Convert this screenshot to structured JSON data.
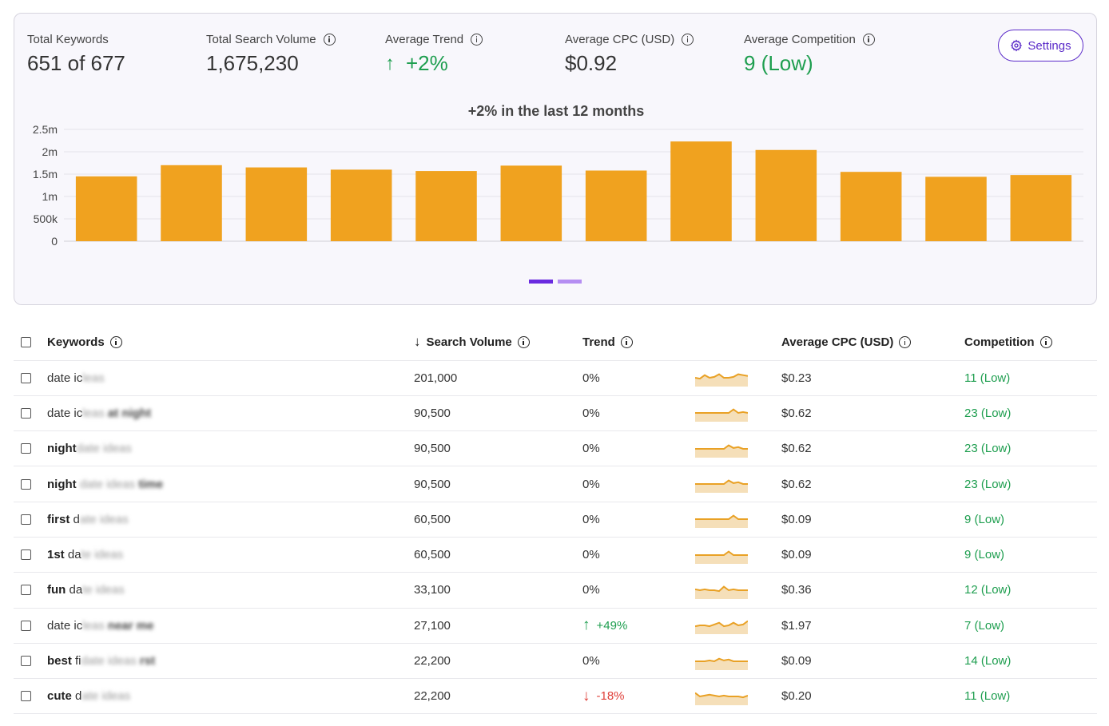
{
  "metrics": [
    {
      "label": "Total Keywords",
      "value": "651 of 677",
      "info": false,
      "green": false
    },
    {
      "label": "Total Search Volume",
      "value": "1,675,230",
      "info": true,
      "green": false
    },
    {
      "label": "Average Trend",
      "value": "+2%",
      "info": true,
      "green": true,
      "arrow": "↑"
    },
    {
      "label": "Average CPC (USD)",
      "value": "$0.92",
      "info": true,
      "green": false
    },
    {
      "label": "Average Competition",
      "value": "9 (Low)",
      "info": true,
      "green": true
    }
  ],
  "settings_label": "Settings",
  "accent_color": "#5b2bc9",
  "chart_data": {
    "type": "bar",
    "title": "+2% in the last 12 months",
    "y_ticks": [
      "2.5m",
      "2m",
      "1.5m",
      "1m",
      "500k",
      "0"
    ],
    "ylim": [
      0,
      2500000
    ],
    "values": [
      1450000,
      1700000,
      1650000,
      1600000,
      1570000,
      1690000,
      1580000,
      2230000,
      2040000,
      1550000,
      1440000,
      1480000
    ],
    "bar_color": "#f0a21f",
    "grid": true
  },
  "table": {
    "headers": {
      "keywords": "Keywords",
      "search_volume": "Search Volume",
      "sort_arrow": "↓",
      "trend": "Trend",
      "cpc": "Average CPC (USD)",
      "competition": "Competition"
    },
    "rows": [
      {
        "kw_bold": "",
        "kw_plain": "date ic",
        "kw_blur": "leas",
        "kw_blur_bold": "",
        "volume": "201,000",
        "trend": "0%",
        "trend_dir": "flat",
        "spark": [
          0.5,
          0.55,
          0.35,
          0.5,
          0.45,
          0.3,
          0.5,
          0.5,
          0.45,
          0.3,
          0.35,
          0.4
        ],
        "cpc": "$0.23",
        "competition": "11 (Low)"
      },
      {
        "kw_bold": "",
        "kw_plain": "date ic",
        "kw_blur": "leas",
        "kw_blur_bold": "at night",
        "volume": "90,500",
        "trend": "0%",
        "trend_dir": "flat",
        "spark": [
          0.5,
          0.5,
          0.5,
          0.5,
          0.5,
          0.5,
          0.5,
          0.5,
          0.3,
          0.5,
          0.45,
          0.5
        ],
        "cpc": "$0.62",
        "competition": "23 (Low)"
      },
      {
        "kw_bold": "night",
        "kw_plain": "",
        "kw_blur": "date ideas",
        "kw_blur_bold": "",
        "volume": "90,500",
        "trend": "0%",
        "trend_dir": "flat",
        "spark": [
          0.5,
          0.5,
          0.5,
          0.5,
          0.5,
          0.5,
          0.5,
          0.3,
          0.45,
          0.4,
          0.5,
          0.5
        ],
        "cpc": "$0.62",
        "competition": "23 (Low)"
      },
      {
        "kw_bold": "night",
        "kw_plain": " ",
        "kw_blur": "date ideas",
        "kw_blur_bold": "time",
        "volume": "90,500",
        "trend": "0%",
        "trend_dir": "flat",
        "spark": [
          0.5,
          0.5,
          0.5,
          0.5,
          0.5,
          0.5,
          0.5,
          0.3,
          0.45,
          0.4,
          0.5,
          0.5
        ],
        "cpc": "$0.62",
        "competition": "23 (Low)"
      },
      {
        "kw_bold": "first",
        "kw_plain": " d",
        "kw_blur": "ate ideas",
        "kw_blur_bold": "",
        "volume": "60,500",
        "trend": "0%",
        "trend_dir": "flat",
        "spark": [
          0.5,
          0.5,
          0.5,
          0.5,
          0.5,
          0.5,
          0.5,
          0.5,
          0.3,
          0.5,
          0.5,
          0.5
        ],
        "cpc": "$0.09",
        "competition": "9 (Low)"
      },
      {
        "kw_bold": "1st",
        "kw_plain": " da",
        "kw_blur": "te ideas",
        "kw_blur_bold": "",
        "volume": "60,500",
        "trend": "0%",
        "trend_dir": "flat",
        "spark": [
          0.5,
          0.5,
          0.5,
          0.5,
          0.5,
          0.5,
          0.5,
          0.3,
          0.5,
          0.5,
          0.5,
          0.5
        ],
        "cpc": "$0.09",
        "competition": "9 (Low)"
      },
      {
        "kw_bold": "fun",
        "kw_plain": " da",
        "kw_blur": "te ideas",
        "kw_blur_bold": "",
        "volume": "33,100",
        "trend": "0%",
        "trend_dir": "flat",
        "spark": [
          0.45,
          0.5,
          0.45,
          0.5,
          0.5,
          0.55,
          0.3,
          0.5,
          0.45,
          0.5,
          0.5,
          0.5
        ],
        "cpc": "$0.36",
        "competition": "12 (Low)"
      },
      {
        "kw_bold": "",
        "kw_plain": "date ic",
        "kw_blur": "leas",
        "kw_blur_bold": "near me",
        "volume": "27,100",
        "trend": "+49%",
        "trend_dir": "up",
        "spark": [
          0.55,
          0.5,
          0.5,
          0.55,
          0.45,
          0.35,
          0.55,
          0.5,
          0.35,
          0.5,
          0.45,
          0.25
        ],
        "cpc": "$1.97",
        "competition": "7 (Low)"
      },
      {
        "kw_bold": "best",
        "kw_plain": " fi",
        "kw_blur": "date ideas",
        "kw_blur_bold": "rst",
        "volume": "22,200",
        "trend": "0%",
        "trend_dir": "flat",
        "spark": [
          0.5,
          0.5,
          0.5,
          0.45,
          0.5,
          0.35,
          0.45,
          0.4,
          0.5,
          0.5,
          0.5,
          0.5
        ],
        "cpc": "$0.09",
        "competition": "14 (Low)"
      },
      {
        "kw_bold": "cute",
        "kw_plain": " d",
        "kw_blur": "ate ideas",
        "kw_blur_bold": "",
        "volume": "22,200",
        "trend": "-18%",
        "trend_dir": "down",
        "spark": [
          0.3,
          0.5,
          0.45,
          0.4,
          0.45,
          0.5,
          0.45,
          0.5,
          0.5,
          0.5,
          0.55,
          0.45
        ],
        "cpc": "$0.20",
        "competition": "11 (Low)"
      }
    ]
  }
}
